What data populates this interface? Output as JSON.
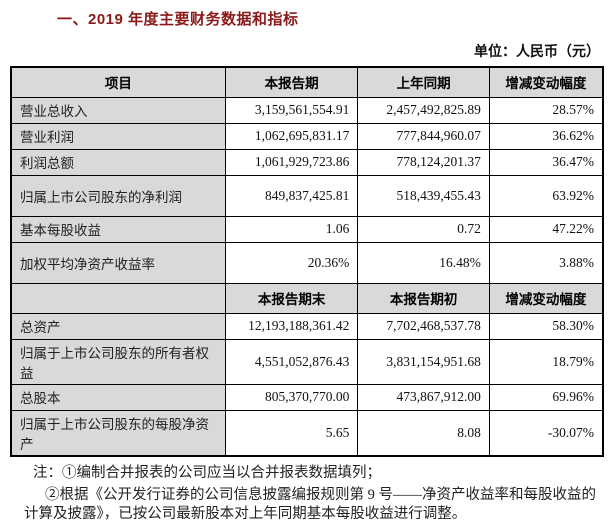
{
  "title": "一、2019 年度主要财务数据和指标",
  "unit_label": "单位：人民币（元）",
  "colors": {
    "title_text": "#8b1a1a",
    "header_bg": "#d9d9d9",
    "label_cell_bg": "#d9d9d9",
    "border": "#000000",
    "page_bg": "#ffffff"
  },
  "table1": {
    "headers": [
      "项目",
      "本报告期",
      "上年同期",
      "增减变动幅度"
    ],
    "rows": [
      {
        "label": "营业总收入",
        "v1": "3,159,561,554.91",
        "v2": "2,457,492,825.89",
        "v3": "28.57%"
      },
      {
        "label": "营业利润",
        "v1": "1,062,695,831.17",
        "v2": "777,844,960.07",
        "v3": "36.62%"
      },
      {
        "label": "利润总额",
        "v1": "1,061,929,723.86",
        "v2": "778,124,201.37",
        "v3": "36.47%"
      },
      {
        "label": "归属上市公司股东的净利润",
        "v1": "849,837,425.81",
        "v2": "518,439,455.43",
        "v3": "63.92%"
      },
      {
        "label": "基本每股收益",
        "v1": "1.06",
        "v2": "0.72",
        "v3": "47.22%"
      },
      {
        "label": "加权平均净资产收益率",
        "v1": "20.36%",
        "v2": "16.48%",
        "v3": "3.88%"
      }
    ]
  },
  "table2": {
    "headers": [
      "",
      "本报告期末",
      "本报告期初",
      "增减变动幅度"
    ],
    "rows": [
      {
        "label": "总资产",
        "v1": "12,193,188,361.42",
        "v2": "7,702,468,537.78",
        "v3": "58.30%"
      },
      {
        "label": "归属于上市公司股东的所有者权益",
        "v1": "4,551,052,876.43",
        "v2": "3,831,154,951.68",
        "v3": "18.79%"
      },
      {
        "label": "总股本",
        "v1": "805,370,770.00",
        "v2": "473,867,912.00",
        "v3": "69.96%"
      },
      {
        "label": "归属于上市公司股东的每股净资产",
        "v1": "5.65",
        "v2": "8.08",
        "v3": "-30.07%"
      }
    ]
  },
  "notes": [
    "注：①编制合并报表的公司应当以合并报表数据填列；",
    "②根据《公开发行证券的公司信息披露编报规则第 9 号——净资产收益率和每股收益的计算及披露》，已按公司最新股本对上年同期基本每股收益进行调整。"
  ]
}
